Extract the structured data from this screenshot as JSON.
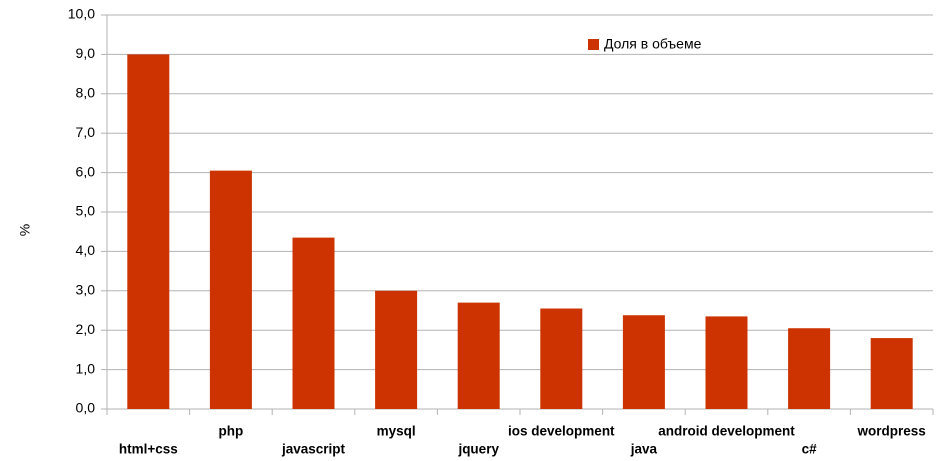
{
  "chart_data": {
    "type": "bar",
    "y_label": "%",
    "categories": [
      "html+css",
      "php",
      "javascript",
      "mysql",
      "jquery",
      "ios development",
      "java",
      "android development",
      "c#",
      "wordpress"
    ],
    "series": [
      {
        "name": "Доля в объеме",
        "color": "#cc3300",
        "values": [
          9.0,
          6.05,
          4.35,
          3.0,
          2.7,
          2.55,
          2.38,
          2.35,
          2.05,
          1.8
        ]
      }
    ],
    "ylim": [
      0,
      10
    ],
    "yticks": [
      {
        "value": 0,
        "label": "0,0"
      },
      {
        "value": 1,
        "label": "1,0"
      },
      {
        "value": 2,
        "label": "2,0"
      },
      {
        "value": 3,
        "label": "3,0"
      },
      {
        "value": 4,
        "label": "4,0"
      },
      {
        "value": 5,
        "label": "5,0"
      },
      {
        "value": 6,
        "label": "6,0"
      },
      {
        "value": 7,
        "label": "7,0"
      },
      {
        "value": 8,
        "label": "8,0"
      },
      {
        "value": 9,
        "label": "9,0"
      },
      {
        "value": 10,
        "label": "10,0"
      }
    ],
    "grid": true,
    "legend": "top-right"
  }
}
